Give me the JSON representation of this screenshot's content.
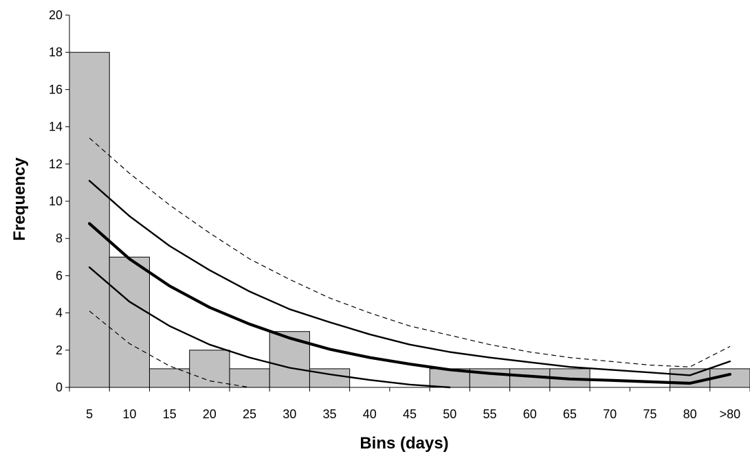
{
  "chart_data": {
    "type": "bar",
    "categories": [
      "5",
      "10",
      "15",
      "20",
      "25",
      "30",
      "35",
      "40",
      "45",
      "50",
      "55",
      "60",
      "65",
      "70",
      "75",
      "80",
      ">80"
    ],
    "values": [
      18,
      7,
      1,
      2,
      1,
      3,
      1,
      0,
      0,
      1,
      1,
      1,
      1,
      0,
      0,
      1,
      1
    ],
    "xlabel": "Bins (days)",
    "ylabel": "Frequency",
    "ylim": [
      0,
      20
    ],
    "yticks": [
      0,
      2,
      4,
      6,
      8,
      10,
      12,
      14,
      16,
      18,
      20
    ],
    "grid": false,
    "legend": "none",
    "lines": [
      {
        "style": "dashed",
        "values": [
          13.4,
          11.5,
          9.8,
          8.3,
          6.9,
          5.8,
          4.8,
          4.0,
          3.3,
          2.8,
          2.3,
          1.9,
          1.6,
          1.4,
          1.2,
          1.1,
          2.2
        ]
      },
      {
        "style": "solid",
        "values": [
          11.1,
          9.2,
          7.6,
          6.3,
          5.15,
          4.2,
          3.5,
          2.85,
          2.3,
          1.9,
          1.6,
          1.35,
          1.1,
          0.95,
          0.8,
          0.65,
          1.4
        ]
      },
      {
        "style": "bold",
        "values": [
          8.8,
          6.9,
          5.45,
          4.3,
          3.4,
          2.65,
          2.05,
          1.6,
          1.25,
          0.95,
          0.75,
          0.6,
          0.45,
          0.38,
          0.3,
          0.22,
          0.7
        ]
      },
      {
        "style": "solid",
        "values": [
          6.45,
          4.6,
          3.3,
          2.3,
          1.6,
          1.05,
          0.7,
          0.4,
          0.15,
          0.0,
          0.0,
          0.0,
          0.0,
          0.0,
          0.0,
          0.0,
          0.0
        ]
      },
      {
        "style": "dashed",
        "values": [
          4.1,
          2.35,
          1.15,
          0.35,
          0.0,
          0.0,
          0.0,
          0.0,
          0.0,
          0.0,
          0.0,
          0.0,
          0.0,
          0.0,
          0.0,
          0.0,
          0.0
        ]
      }
    ]
  }
}
